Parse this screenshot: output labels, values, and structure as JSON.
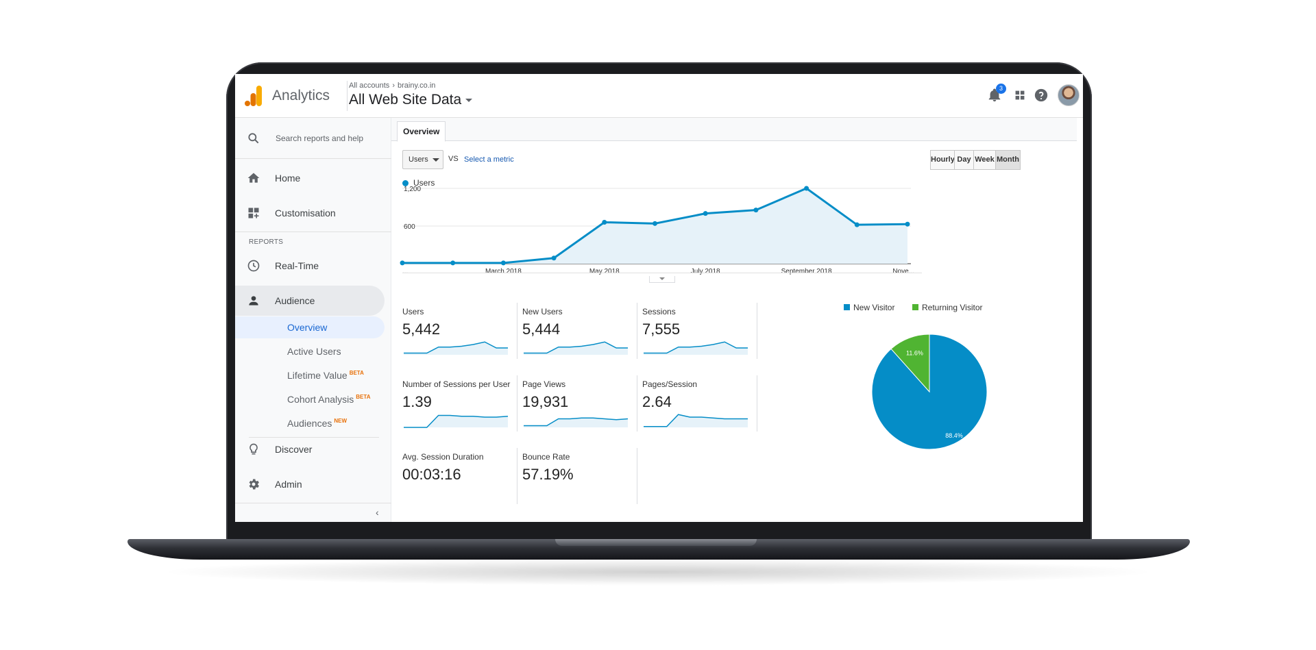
{
  "header": {
    "app_title": "Analytics",
    "breadcrumb_account": "All accounts",
    "breadcrumb_property": "brainy.co.in",
    "view_name": "All Web Site Data",
    "notification_count": "3"
  },
  "sidebar": {
    "search_placeholder": "Search reports and help",
    "home": "Home",
    "customisation": "Customisation",
    "reports_section": "REPORTS",
    "realtime": "Real-Time",
    "audience": "Audience",
    "audience_items": [
      {
        "label": "Overview",
        "tag": ""
      },
      {
        "label": "Active Users",
        "tag": ""
      },
      {
        "label": "Lifetime Value",
        "tag": "BETA"
      },
      {
        "label": "Cohort Analysis",
        "tag": "BETA"
      },
      {
        "label": "Audiences",
        "tag": "NEW"
      }
    ],
    "discover": "Discover",
    "admin": "Admin"
  },
  "main": {
    "tab": "Overview",
    "metric": "Users",
    "vs": "VS",
    "select_metric": "Select a metric",
    "periods": [
      "Hourly",
      "Day",
      "Week",
      "Month"
    ],
    "selected_period": "Month"
  },
  "chart_data": [
    {
      "type": "area",
      "series": [
        {
          "name": "Users",
          "values": [
            12,
            12,
            12,
            90,
            660,
            640,
            800,
            855,
            1200,
            620,
            630
          ]
        }
      ],
      "x_tick_labels": [
        "...",
        "March 2018",
        "May 2018",
        "July 2018",
        "September 2018",
        "Nove..."
      ],
      "y_tick_labels": [
        "1,200",
        "600"
      ],
      "ylim": [
        0,
        1200
      ],
      "grid": true,
      "color": "#058dc7"
    },
    {
      "type": "pie",
      "labels": [
        "New Visitor",
        "Returning Visitor"
      ],
      "values": [
        88.4,
        11.6
      ],
      "value_labels": [
        "88.4%",
        "11.6%"
      ],
      "colors": [
        "#058dc7",
        "#50b432"
      ],
      "legend_position": "top"
    }
  ],
  "kpis": [
    {
      "label": "Users",
      "value": "5,442",
      "spark": [
        2,
        2,
        2,
        9,
        9,
        10,
        12,
        15,
        8,
        8
      ]
    },
    {
      "label": "New Users",
      "value": "5,444",
      "spark": [
        2,
        2,
        2,
        9,
        9,
        10,
        12,
        15,
        8,
        8
      ]
    },
    {
      "label": "Sessions",
      "value": "7,555",
      "spark": [
        2,
        2,
        2,
        9,
        9,
        10,
        12,
        15,
        8,
        8
      ]
    },
    {
      "label": "Number of Sessions per User",
      "value": "1.39",
      "spark": [
        0,
        0,
        0,
        14,
        14,
        13,
        13,
        12,
        12,
        13
      ]
    },
    {
      "label": "Page Views",
      "value": "19,931",
      "spark": [
        2,
        2,
        2,
        10,
        10,
        11,
        11,
        10,
        9,
        10
      ]
    },
    {
      "label": "Pages/Session",
      "value": "2.64",
      "spark": [
        1,
        1,
        1,
        15,
        12,
        12,
        11,
        10,
        10,
        10
      ]
    },
    {
      "label": "Avg. Session Duration",
      "value": "00:03:16",
      "spark": []
    },
    {
      "label": "Bounce Rate",
      "value": "57.19%",
      "spark": []
    }
  ]
}
